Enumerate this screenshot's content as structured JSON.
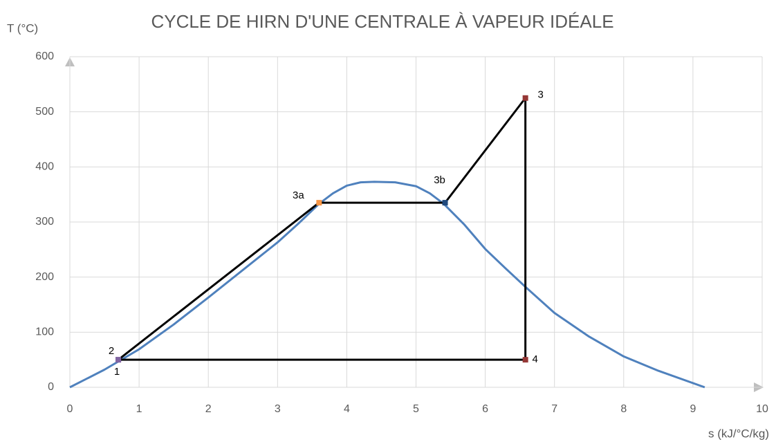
{
  "chart_data": {
    "type": "line",
    "title": "CYCLE DE HIRN D'UNE CENTRALE À VAPEUR IDÉALE",
    "y_label": "T (°C)",
    "x_label": "s (kJ/°C/kg)",
    "xlim": [
      0,
      10
    ],
    "ylim": [
      0,
      600
    ],
    "xticks": [
      0,
      1,
      2,
      3,
      4,
      5,
      6,
      7,
      8,
      9,
      10
    ],
    "yticks": [
      0,
      100,
      200,
      300,
      400,
      500,
      600
    ],
    "grid": true,
    "series": [
      {
        "color": "#4f81bd",
        "x": [
          0,
          0.5,
          1,
          1.5,
          2,
          2.5,
          3,
          3.3,
          3.6,
          3.8,
          4,
          4.2,
          4.4,
          4.7,
          5,
          5.2,
          5.4,
          5.7,
          6,
          6.3,
          6.6,
          7,
          7.5,
          8,
          8.5,
          9.17
        ],
        "values": [
          0,
          32,
          69,
          114,
          163,
          213,
          263,
          297,
          333,
          352,
          366,
          372,
          373,
          372,
          365,
          352,
          333,
          295,
          251,
          215,
          180,
          135,
          92,
          56,
          30,
          0
        ]
      },
      {
        "color": "#000000",
        "labels": [
          "1",
          "2",
          "3a",
          "3b",
          "3",
          "4"
        ],
        "point_colors": [
          "#8064a2",
          "#8064a2",
          "#f79646",
          "#1f497d",
          "#953735",
          "#953735"
        ],
        "x": [
          0.7,
          0.7,
          3.6,
          5.42,
          6.58,
          6.58
        ],
        "values": [
          50,
          50,
          335,
          335,
          525,
          50
        ]
      }
    ]
  }
}
